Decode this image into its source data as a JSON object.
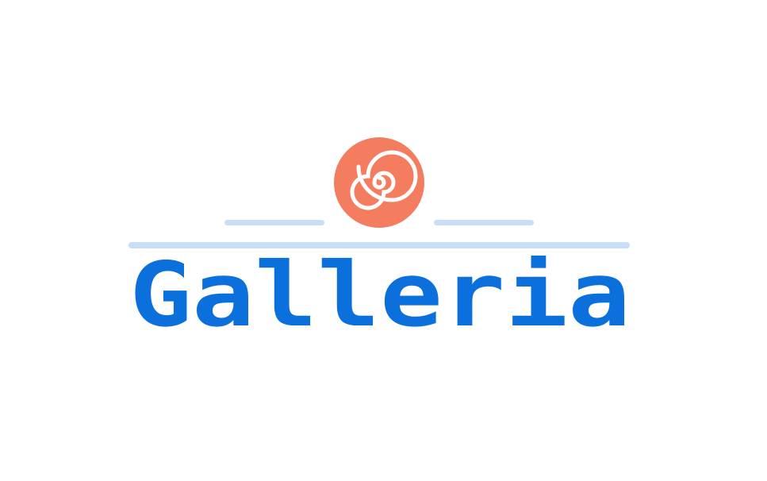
{
  "logo": {
    "wordmark": "Galleria",
    "colors": {
      "wordmark": "#0b6fdc",
      "lines": "#c7def8",
      "spiral_badge": "#f47c5f",
      "spiral_stroke": "#ffffff"
    },
    "icon": "spiral-shell-icon"
  }
}
